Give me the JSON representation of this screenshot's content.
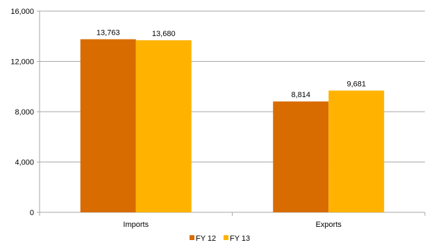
{
  "chart_data": {
    "type": "bar",
    "categories": [
      "Imports",
      "Exports"
    ],
    "series": [
      {
        "name": "FY 12",
        "values": [
          13763,
          8814
        ],
        "labels": [
          "13,763",
          "8,814"
        ],
        "color": "#D96C00"
      },
      {
        "name": "FY 13",
        "values": [
          13680,
          9681
        ],
        "labels": [
          "13,680",
          "9,681"
        ],
        "color": "#FFB300"
      }
    ],
    "ylim": [
      0,
      16000
    ],
    "yticks": [
      0,
      4000,
      8000,
      12000,
      16000
    ],
    "ytick_labels": [
      "0",
      "4,000",
      "8,000",
      "12,000",
      "16,000"
    ],
    "grid": true,
    "legend_position": "bottom",
    "title": "",
    "xlabel": "",
    "ylabel": ""
  }
}
